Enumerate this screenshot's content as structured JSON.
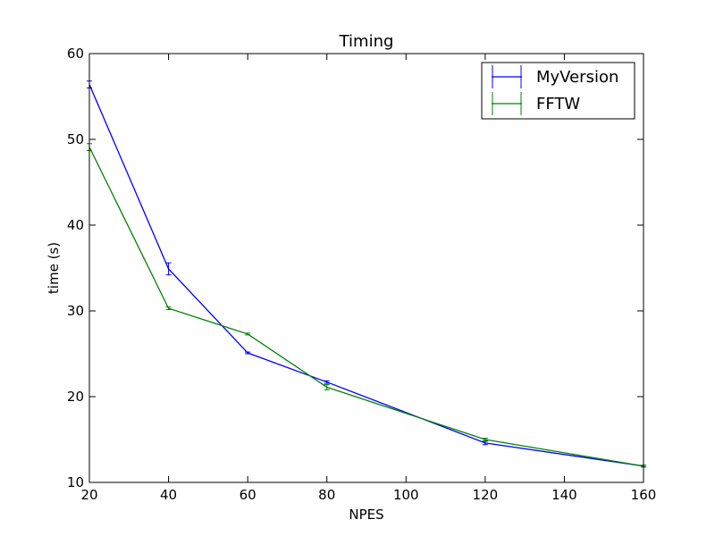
{
  "chart_data": {
    "type": "line",
    "title": "Timing",
    "xlabel": "NPES",
    "ylabel": "time (s)",
    "xlim": [
      20,
      160
    ],
    "ylim": [
      10,
      60
    ],
    "xticks": [
      20,
      40,
      60,
      80,
      100,
      120,
      140,
      160
    ],
    "yticks": [
      10,
      20,
      30,
      40,
      50,
      60
    ],
    "grid": false,
    "legend_position": "top-right",
    "series": [
      {
        "name": "MyVersion",
        "color": "#0000ff",
        "x": [
          20,
          40,
          60,
          80,
          120,
          160
        ],
        "y": [
          56.4,
          34.9,
          25.1,
          21.7,
          14.6,
          11.9
        ],
        "yerr": [
          0.4,
          0.7,
          0.1,
          0.15,
          0.2,
          0.1
        ]
      },
      {
        "name": "FFTW",
        "color": "#008000",
        "x": [
          20,
          40,
          60,
          80,
          120,
          160
        ],
        "y": [
          49.1,
          30.3,
          27.3,
          21.1,
          15.0,
          11.9
        ],
        "yerr": [
          0.4,
          0.15,
          0.1,
          0.3,
          0.15,
          0.1
        ]
      }
    ]
  }
}
